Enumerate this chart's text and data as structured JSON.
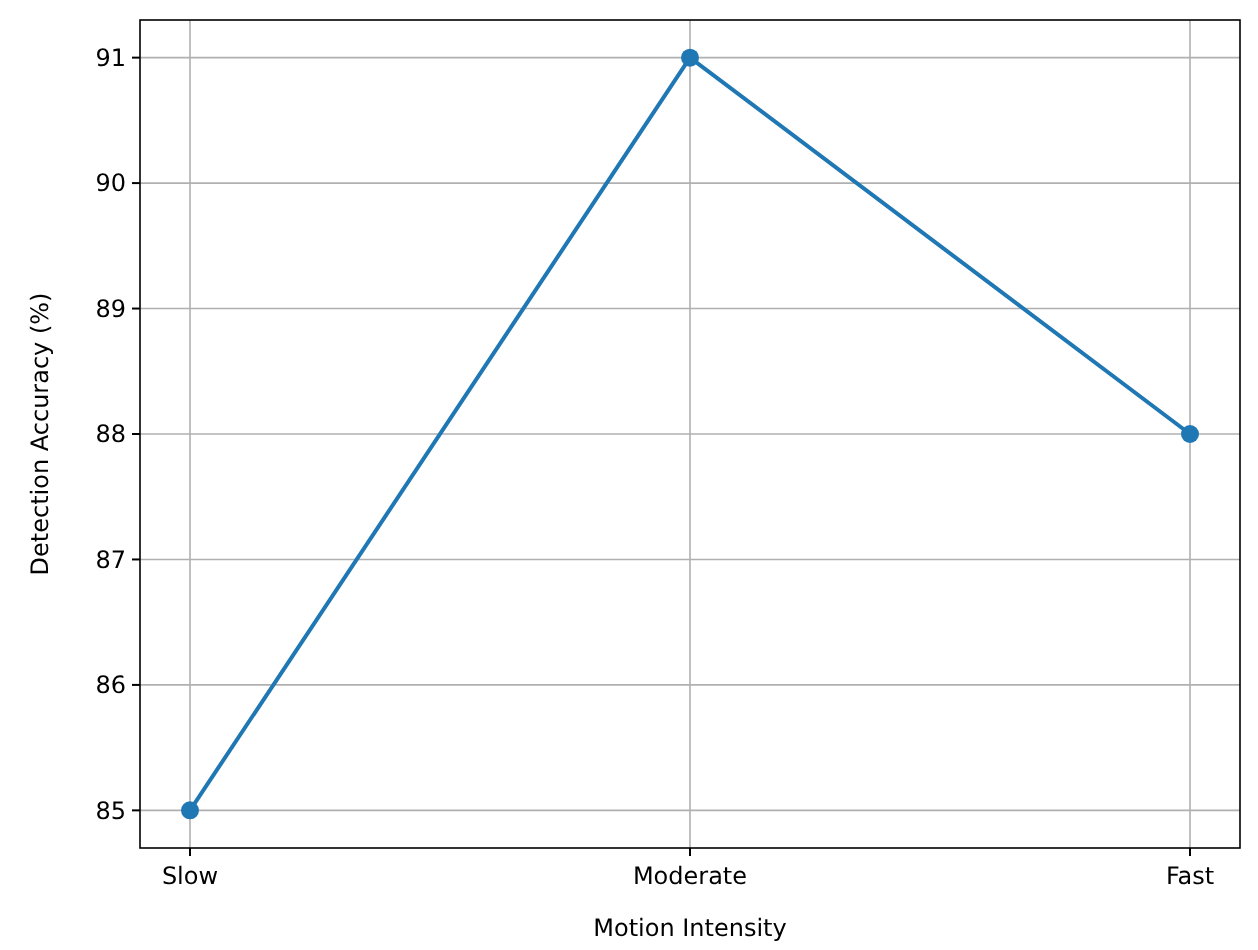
{
  "chart_data": {
    "type": "line",
    "xlabel": "Motion Intensity",
    "ylabel": "Detection Accuracy (%)",
    "categories": [
      "Slow",
      "Moderate",
      "Fast"
    ],
    "series": [
      {
        "color": "#1f77b4",
        "values": [
          85,
          91,
          88
        ]
      }
    ],
    "ylim": [
      84.7,
      91.3
    ],
    "yticks": [
      85,
      86,
      87,
      88,
      89,
      90,
      91
    ],
    "grid": true,
    "marker": "circle"
  }
}
